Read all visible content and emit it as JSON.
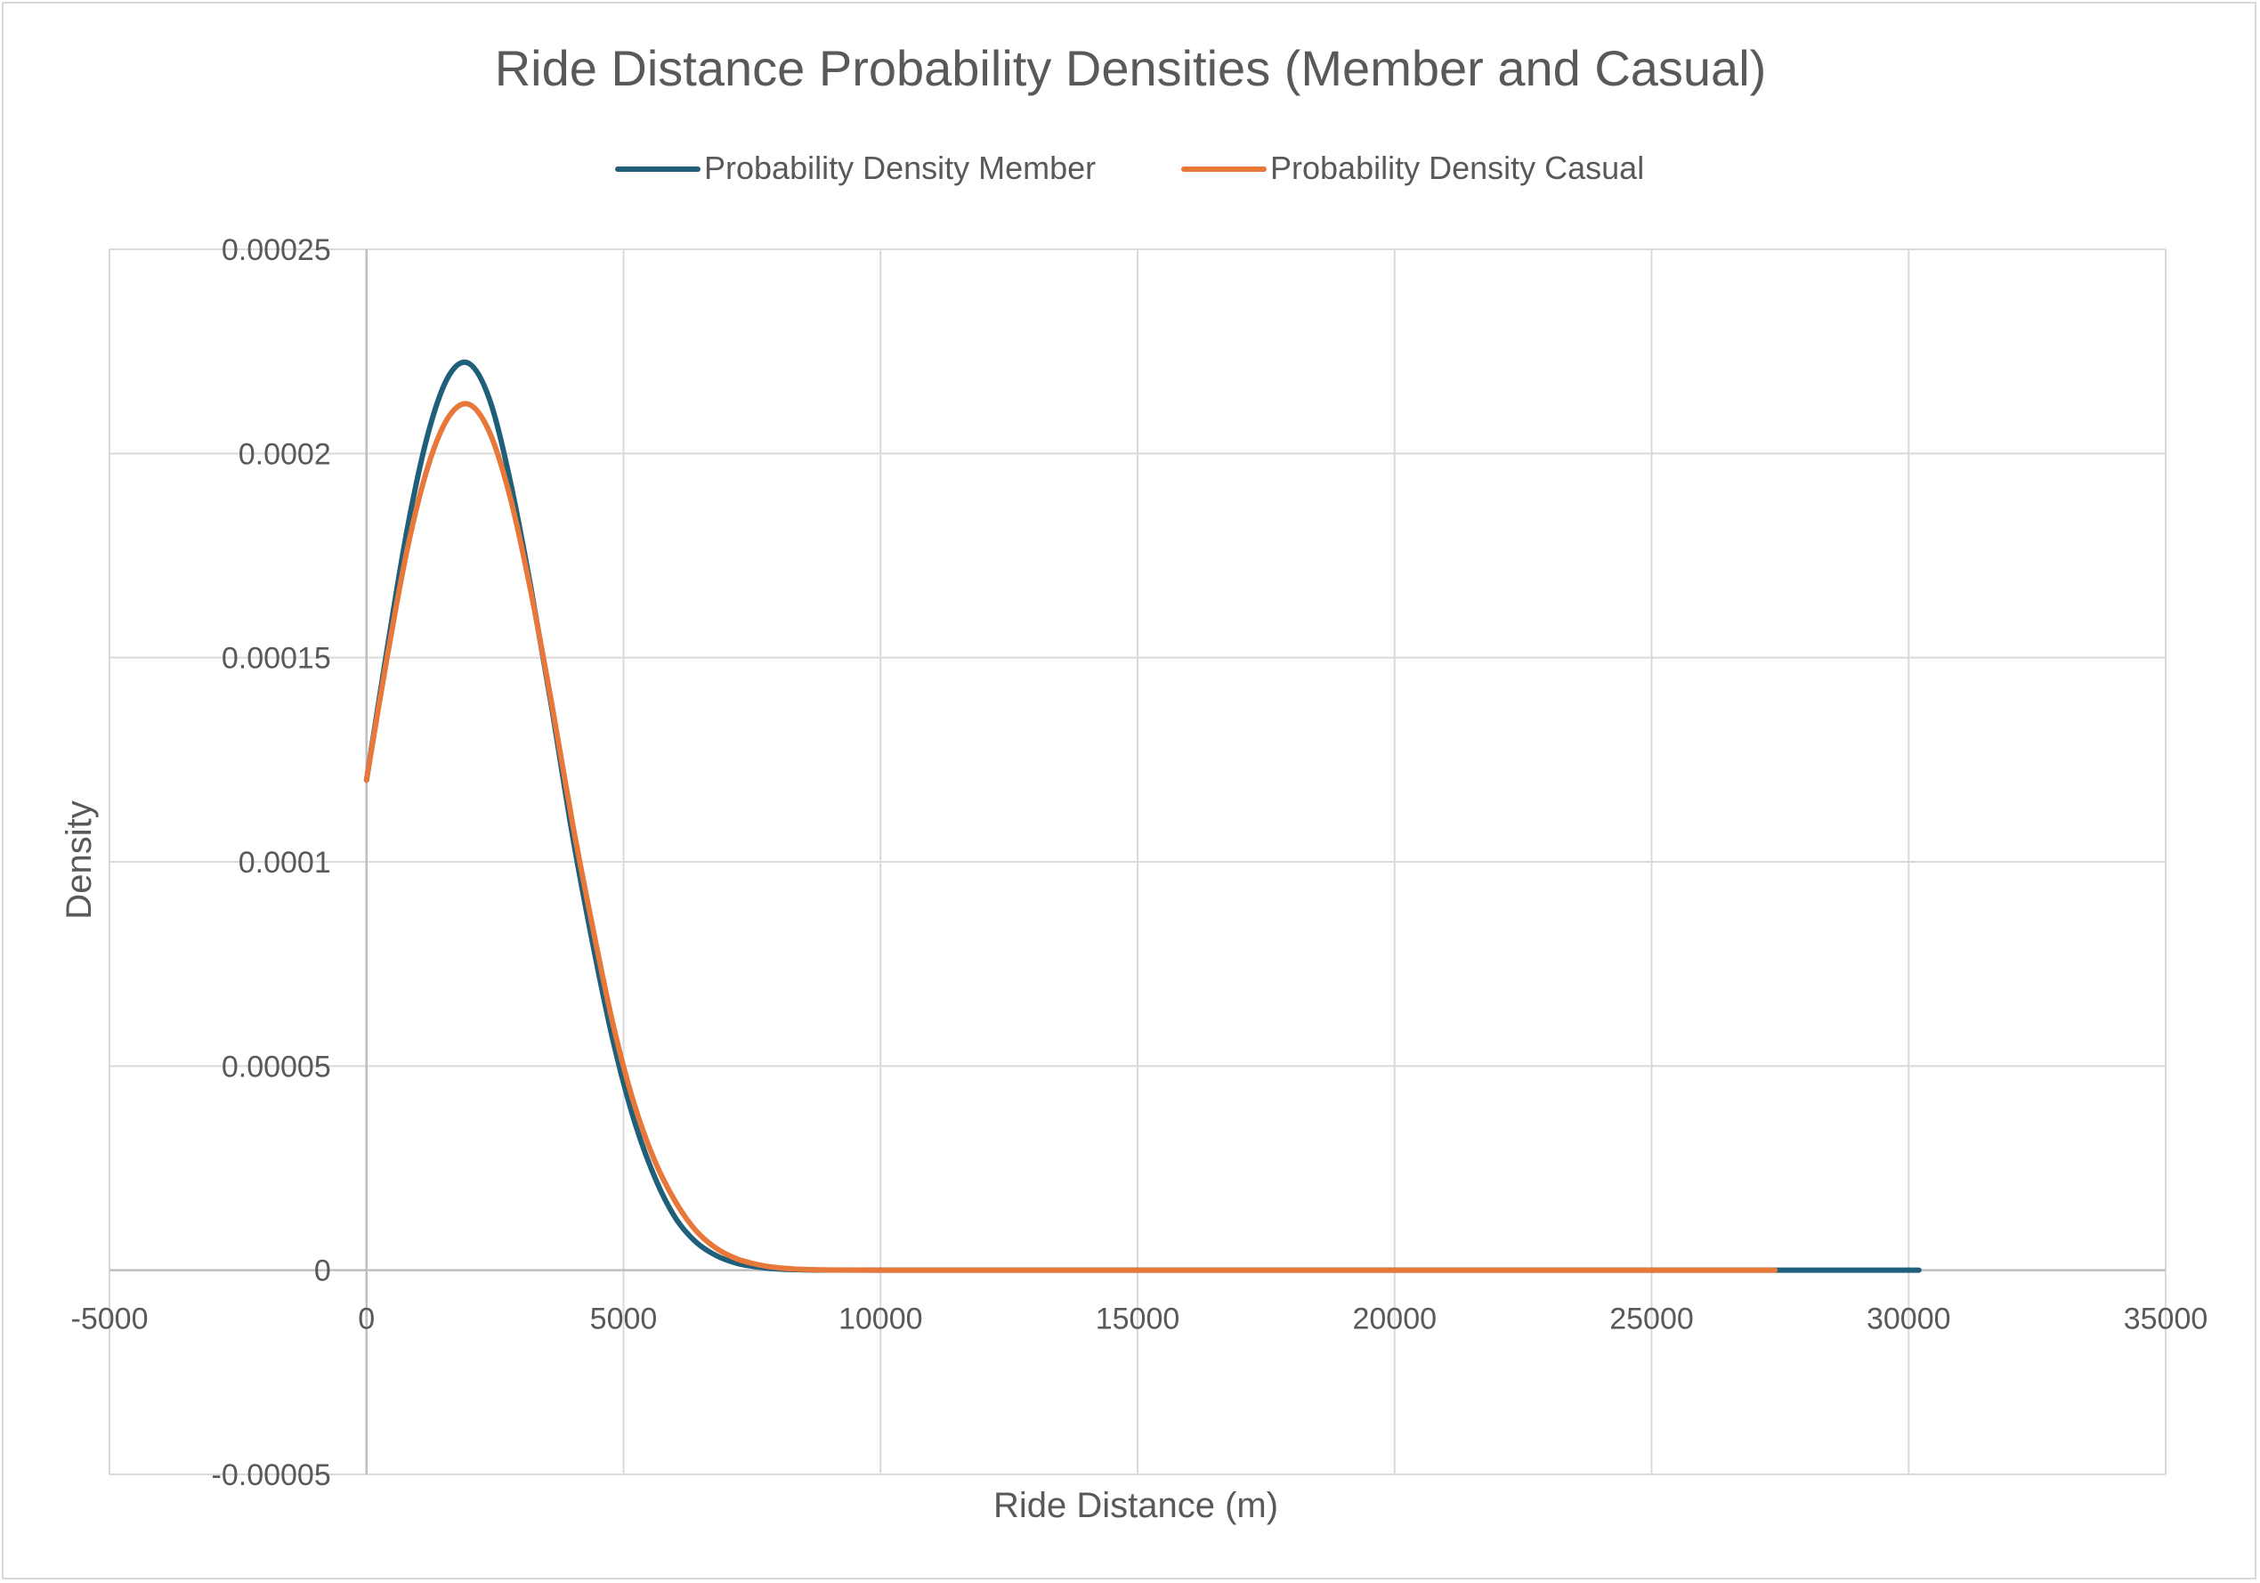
{
  "chart_data": {
    "type": "line",
    "title": "Ride Distance Probability Densities (Member and Casual)",
    "xlabel": "Ride Distance (m)",
    "ylabel": "Density",
    "xlim": [
      -5000,
      35000
    ],
    "ylim": [
      -5e-05,
      0.00025
    ],
    "x_ticks": [
      -5000,
      0,
      5000,
      10000,
      15000,
      20000,
      25000,
      30000,
      35000
    ],
    "x_tick_labels": [
      "-5000",
      "0",
      "5000",
      "10000",
      "15000",
      "20000",
      "25000",
      "30000",
      "35000"
    ],
    "y_ticks": [
      -5e-05,
      0,
      5e-05,
      0.0001,
      0.00015,
      0.0002,
      0.00025
    ],
    "y_tick_labels": [
      "-0.00005",
      "0",
      "0.00005",
      "0.0001",
      "0.00015",
      "0.0002",
      "0.00025"
    ],
    "grid": true,
    "legend_position": "top",
    "series": [
      {
        "name": "Probability Density Member",
        "color": "#1f5f7a",
        "x": [
          0,
          400,
          800,
          1200,
          1600,
          2000,
          2400,
          2800,
          3200,
          3600,
          4000,
          4400,
          4800,
          5200,
          5600,
          6000,
          6400,
          6800,
          7200,
          7600,
          8000,
          8500,
          9000,
          10000,
          12000,
          15000,
          20000,
          25000,
          27400,
          30200
        ],
        "y": [
          0.00012,
          0.000152,
          0.000182,
          0.000205,
          0.000219,
          0.000222,
          0.000213,
          0.000193,
          0.000167,
          0.000138,
          0.000107,
          8e-05,
          5.6e-05,
          3.7e-05,
          2.3e-05,
          1.3e-05,
          7e-06,
          3.6e-06,
          1.7e-06,
          8e-07,
          3e-07,
          1e-07,
          3e-08,
          0,
          0,
          0,
          0,
          0,
          0,
          0
        ]
      },
      {
        "name": "Probability Density Casual",
        "color": "#e8773a",
        "x": [
          0,
          400,
          800,
          1200,
          1600,
          2000,
          2400,
          2800,
          3200,
          3600,
          4000,
          4400,
          4800,
          5200,
          5600,
          6000,
          6400,
          6800,
          7200,
          7600,
          8000,
          8500,
          9000,
          10000,
          12000,
          15000,
          20000,
          25000,
          27400
        ],
        "y": [
          0.00012,
          0.00015,
          0.000177,
          0.000197,
          0.000209,
          0.000212,
          0.000205,
          0.000189,
          0.000166,
          0.000139,
          0.00011,
          8.4e-05,
          6e-05,
          4.1e-05,
          2.7e-05,
          1.7e-05,
          9.8e-06,
          5.4e-06,
          2.8e-06,
          1.4e-06,
          6e-07,
          2e-07,
          7e-08,
          0,
          0,
          0,
          0,
          0,
          0
        ]
      }
    ]
  }
}
